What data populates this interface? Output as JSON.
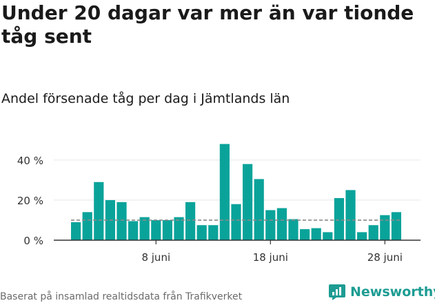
{
  "header": {
    "title": "Under 20 dagar var mer än var tionde tåg sent",
    "subtitle": "Andel försenade tåg per dag i Jämtlands län"
  },
  "footer": {
    "source": "Baserat på insamlad realtidsdata från Trafikverket",
    "brand": "Newsworthy",
    "brand_icon": "bar-chart-logo-icon"
  },
  "colors": {
    "bar": "#0aa39a",
    "reference_line": "#8a8a8a",
    "brand": "#1d9c93",
    "gridline": "#e6e6e6",
    "axis": "#333333"
  },
  "chart_data": {
    "type": "bar",
    "x_start_day": 1,
    "x_label_month": "juni",
    "values": [
      9,
      14,
      29,
      20,
      19,
      9.5,
      11.5,
      10,
      10,
      11.5,
      19,
      7.5,
      7.5,
      48,
      18,
      38,
      30.5,
      15,
      16,
      10.5,
      5.5,
      6,
      4,
      21,
      25,
      4,
      7.5,
      12.5,
      14
    ],
    "reference_value": 10,
    "xlabel": "",
    "ylabel": "",
    "ylim": [
      0,
      52
    ],
    "yticks": [
      {
        "value": 0,
        "label": "0 %"
      },
      {
        "value": 20,
        "label": "20 %"
      },
      {
        "value": 40,
        "label": "40 %"
      }
    ],
    "xticks": [
      {
        "day": 8,
        "label": "8 juni"
      },
      {
        "day": 18,
        "label": "18 juni"
      },
      {
        "day": 28,
        "label": "28 juni"
      }
    ],
    "grid": true,
    "legend": "none"
  }
}
